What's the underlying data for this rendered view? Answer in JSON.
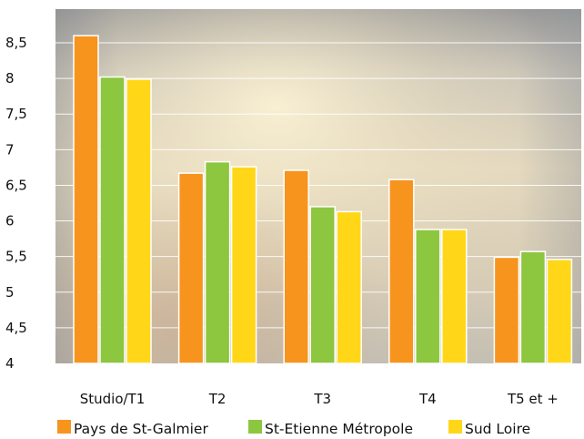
{
  "chart_data": {
    "type": "bar",
    "categories": [
      "Studio/T1",
      "T2",
      "T3",
      "T4",
      "T5 et +"
    ],
    "series": [
      {
        "name": "Pays de St-Galmier",
        "color": "#F7941D",
        "values": [
          8.6,
          6.67,
          6.71,
          6.58,
          5.49
        ]
      },
      {
        "name": "St-Etienne Métropole",
        "color": "#8DC63F",
        "values": [
          8.02,
          6.83,
          6.2,
          5.88,
          5.57
        ]
      },
      {
        "name": "Sud Loire",
        "color": "#FFD718",
        "values": [
          7.99,
          6.76,
          6.13,
          5.88,
          5.46
        ]
      }
    ],
    "yticks": [
      "4",
      "4,5",
      "5",
      "5,5",
      "6",
      "6,5",
      "7",
      "7,5",
      "8",
      "8,5"
    ],
    "ylim": [
      4,
      9
    ],
    "grid": true,
    "legend_position": "bottom"
  }
}
